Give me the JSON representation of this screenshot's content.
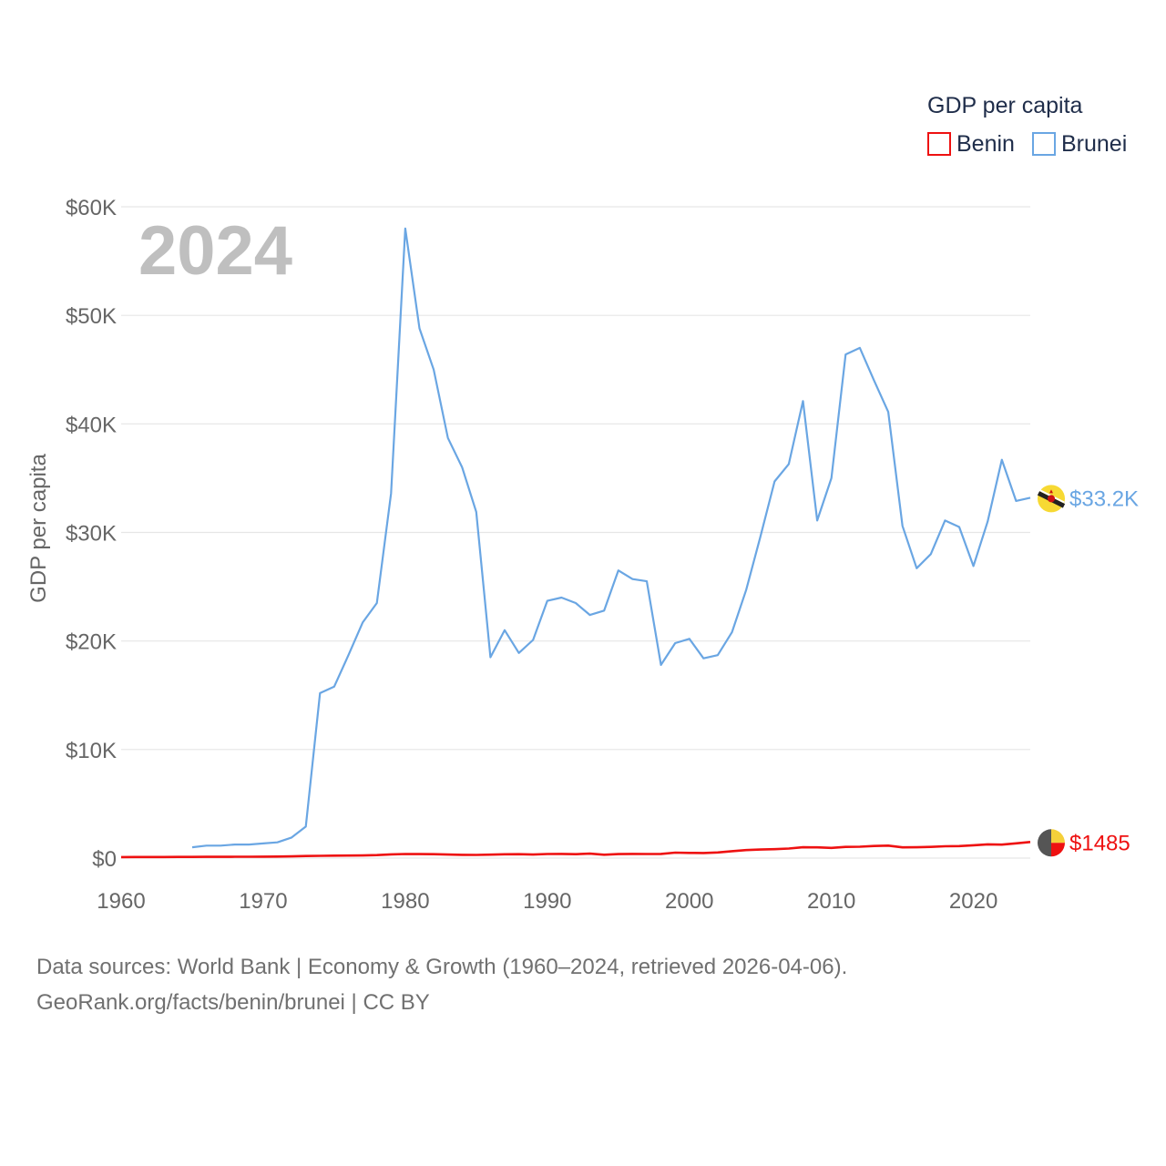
{
  "chart_data": {
    "type": "line",
    "ylabel": "GDP per capita",
    "xlim": [
      1960,
      2024
    ],
    "ylim": [
      0,
      60000
    ],
    "x_ticks": [
      1960,
      1970,
      1980,
      1990,
      2000,
      2010,
      2020
    ],
    "x_tick_labels": [
      "1960",
      "1970",
      "1980",
      "1990",
      "2000",
      "2010",
      "2020"
    ],
    "y_ticks": [
      0,
      10000,
      20000,
      30000,
      40000,
      50000,
      60000
    ],
    "y_tick_labels": [
      "$0",
      "$10K",
      "$20K",
      "$30K",
      "$40K",
      "$50K",
      "$60K"
    ],
    "grid": true,
    "year_watermark": "2024",
    "legend": {
      "title": "GDP per capita",
      "position": "top-right"
    },
    "series": [
      {
        "name": "Benin",
        "color": "#ee1111",
        "end_label": "$1485",
        "flag_colors": [
          "#555555",
          "#f5d03a",
          "#ee1111"
        ],
        "x": [
          1960,
          1961,
          1962,
          1963,
          1964,
          1965,
          1966,
          1967,
          1968,
          1969,
          1970,
          1971,
          1972,
          1973,
          1974,
          1975,
          1976,
          1977,
          1978,
          1979,
          1980,
          1981,
          1982,
          1983,
          1984,
          1985,
          1986,
          1987,
          1988,
          1989,
          1990,
          1991,
          1992,
          1993,
          1994,
          1995,
          1996,
          1997,
          1998,
          1999,
          2000,
          2001,
          2002,
          2003,
          2004,
          2005,
          2006,
          2007,
          2008,
          2009,
          2010,
          2011,
          2012,
          2013,
          2014,
          2015,
          2016,
          2017,
          2018,
          2019,
          2020,
          2021,
          2022,
          2023,
          2024
        ],
        "values": [
          95,
          98,
          100,
          102,
          106,
          110,
          114,
          118,
          122,
          128,
          134,
          140,
          160,
          190,
          210,
          230,
          235,
          240,
          280,
          340,
          380,
          370,
          360,
          330,
          300,
          290,
          320,
          350,
          360,
          330,
          380,
          390,
          360,
          410,
          310,
          370,
          390,
          380,
          390,
          500,
          480,
          470,
          520,
          640,
          740,
          790,
          820,
          880,
          1000,
          990,
          940,
          1030,
          1050,
          1120,
          1150,
          990,
          1000,
          1030,
          1090,
          1110,
          1180,
          1270,
          1240,
          1360,
          1485
        ]
      },
      {
        "name": "Brunei",
        "color": "#6aa6e3",
        "end_label": "$33.2K",
        "flag_colors": [
          "#f7d933",
          "#222222",
          "#ffffff",
          "#cc1111"
        ],
        "x": [
          1965,
          1966,
          1967,
          1968,
          1969,
          1970,
          1971,
          1972,
          1973,
          1974,
          1975,
          1976,
          1977,
          1978,
          1979,
          1980,
          1981,
          1982,
          1983,
          1984,
          1985,
          1986,
          1987,
          1988,
          1989,
          1990,
          1991,
          1992,
          1993,
          1994,
          1995,
          1996,
          1997,
          1998,
          1999,
          2000,
          2001,
          2002,
          2003,
          2004,
          2005,
          2006,
          2007,
          2008,
          2009,
          2010,
          2011,
          2012,
          2013,
          2014,
          2015,
          2016,
          2017,
          2018,
          2019,
          2020,
          2021,
          2022,
          2023,
          2024
        ],
        "values": [
          1000,
          1150,
          1150,
          1250,
          1250,
          1350,
          1450,
          1900,
          2900,
          15200,
          15800,
          18700,
          21700,
          23500,
          33600,
          58000,
          48800,
          45000,
          38700,
          36000,
          31900,
          18500,
          21000,
          18900,
          20100,
          23700,
          24000,
          23500,
          22400,
          22800,
          26500,
          25700,
          25500,
          17800,
          19800,
          20200,
          18400,
          18700,
          20800,
          24700,
          29600,
          34700,
          36300,
          42100,
          31100,
          35000,
          46400,
          47000,
          44000,
          41100,
          30600,
          26700,
          28000,
          31100,
          30500,
          26900,
          31000,
          36700,
          32900,
          33200
        ]
      }
    ]
  },
  "footer": {
    "line1": "Data sources: World Bank | Economy & Growth (1960–2024, retrieved 2026-04-06).",
    "line2": "GeoRank.org/facts/benin/brunei | CC BY"
  }
}
